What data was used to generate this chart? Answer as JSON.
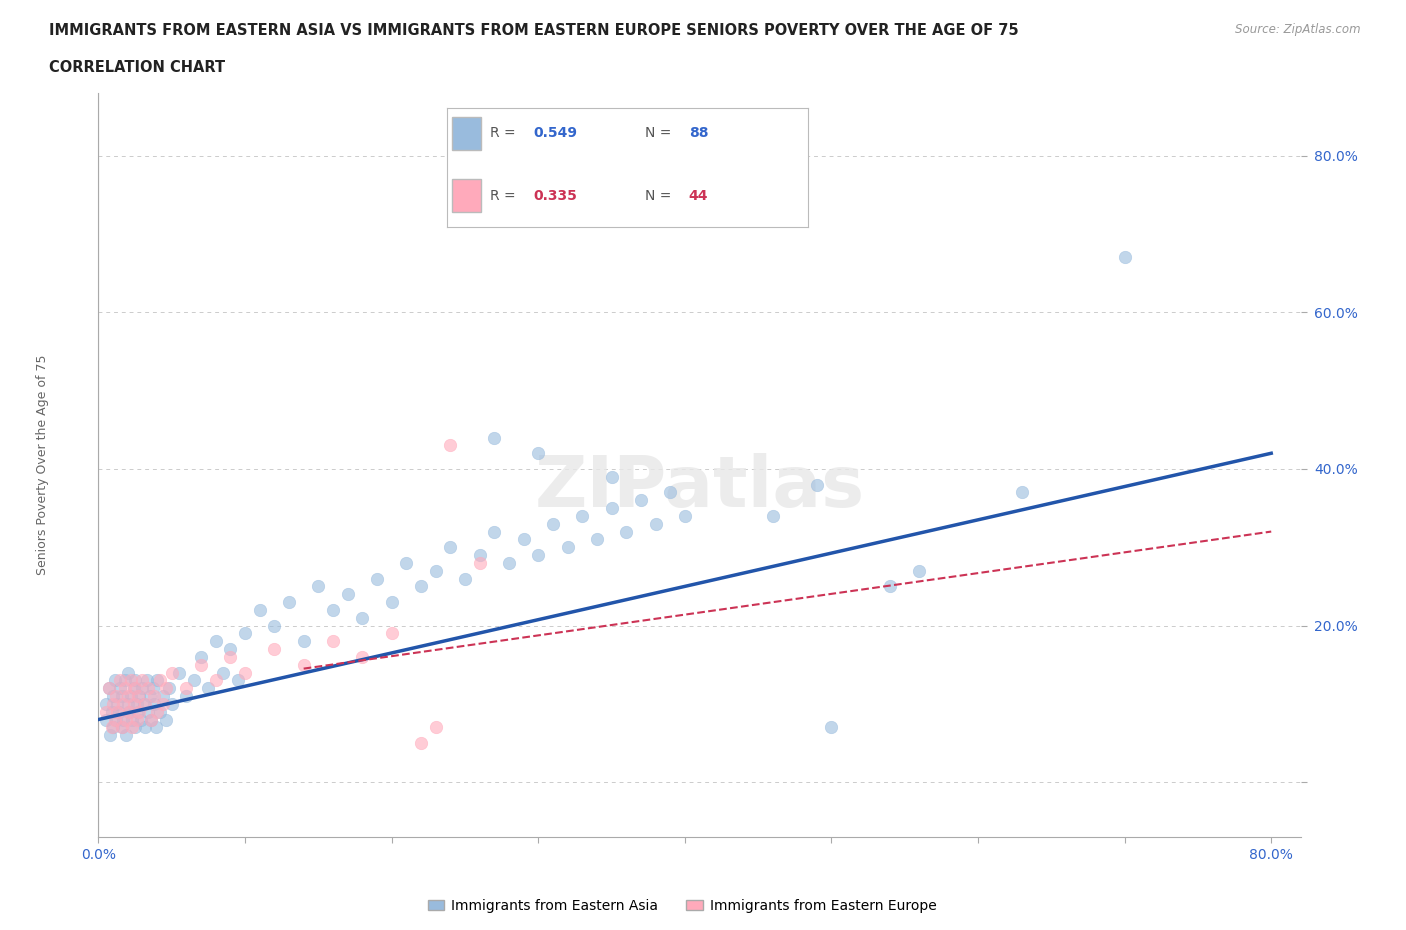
{
  "title_line1": "IMMIGRANTS FROM EASTERN ASIA VS IMMIGRANTS FROM EASTERN EUROPE SENIORS POVERTY OVER THE AGE OF 75",
  "title_line2": "CORRELATION CHART",
  "source_text": "Source: ZipAtlas.com",
  "ylabel": "Seniors Poverty Over the Age of 75",
  "xlim": [
    0.0,
    0.82
  ],
  "ylim": [
    -0.07,
    0.88
  ],
  "xticks": [
    0.0,
    0.1,
    0.2,
    0.3,
    0.4,
    0.5,
    0.6,
    0.7,
    0.8
  ],
  "ytick_positions": [
    0.0,
    0.2,
    0.4,
    0.6,
    0.8
  ],
  "yticklabels": [
    "",
    "20.0%",
    "40.0%",
    "60.0%",
    "80.0%"
  ],
  "grid_color": "#cccccc",
  "background_color": "#ffffff",
  "blue_color": "#99bbdd",
  "pink_color": "#ffaabb",
  "blue_line_color": "#2255aa",
  "pink_line_color": "#cc3355",
  "blue_scatter": [
    [
      0.005,
      0.1
    ],
    [
      0.005,
      0.08
    ],
    [
      0.007,
      0.12
    ],
    [
      0.008,
      0.06
    ],
    [
      0.009,
      0.09
    ],
    [
      0.01,
      0.11
    ],
    [
      0.01,
      0.07
    ],
    [
      0.011,
      0.13
    ],
    [
      0.012,
      0.08
    ],
    [
      0.013,
      0.1
    ],
    [
      0.014,
      0.09
    ],
    [
      0.015,
      0.12
    ],
    [
      0.016,
      0.07
    ],
    [
      0.016,
      0.11
    ],
    [
      0.017,
      0.08
    ],
    [
      0.018,
      0.13
    ],
    [
      0.019,
      0.06
    ],
    [
      0.02,
      0.1
    ],
    [
      0.02,
      0.14
    ],
    [
      0.021,
      0.09
    ],
    [
      0.022,
      0.11
    ],
    [
      0.023,
      0.08
    ],
    [
      0.024,
      0.12
    ],
    [
      0.025,
      0.07
    ],
    [
      0.025,
      0.13
    ],
    [
      0.026,
      0.1
    ],
    [
      0.027,
      0.09
    ],
    [
      0.028,
      0.11
    ],
    [
      0.029,
      0.08
    ],
    [
      0.03,
      0.12
    ],
    [
      0.031,
      0.1
    ],
    [
      0.032,
      0.07
    ],
    [
      0.033,
      0.13
    ],
    [
      0.034,
      0.09
    ],
    [
      0.035,
      0.11
    ],
    [
      0.036,
      0.08
    ],
    [
      0.037,
      0.12
    ],
    [
      0.038,
      0.1
    ],
    [
      0.039,
      0.07
    ],
    [
      0.04,
      0.13
    ],
    [
      0.042,
      0.09
    ],
    [
      0.044,
      0.11
    ],
    [
      0.046,
      0.08
    ],
    [
      0.048,
      0.12
    ],
    [
      0.05,
      0.1
    ],
    [
      0.055,
      0.14
    ],
    [
      0.06,
      0.11
    ],
    [
      0.065,
      0.13
    ],
    [
      0.07,
      0.16
    ],
    [
      0.075,
      0.12
    ],
    [
      0.08,
      0.18
    ],
    [
      0.085,
      0.14
    ],
    [
      0.09,
      0.17
    ],
    [
      0.095,
      0.13
    ],
    [
      0.1,
      0.19
    ],
    [
      0.11,
      0.22
    ],
    [
      0.12,
      0.2
    ],
    [
      0.13,
      0.23
    ],
    [
      0.14,
      0.18
    ],
    [
      0.15,
      0.25
    ],
    [
      0.16,
      0.22
    ],
    [
      0.17,
      0.24
    ],
    [
      0.18,
      0.21
    ],
    [
      0.19,
      0.26
    ],
    [
      0.2,
      0.23
    ],
    [
      0.21,
      0.28
    ],
    [
      0.22,
      0.25
    ],
    [
      0.23,
      0.27
    ],
    [
      0.24,
      0.3
    ],
    [
      0.25,
      0.26
    ],
    [
      0.26,
      0.29
    ],
    [
      0.27,
      0.32
    ],
    [
      0.28,
      0.28
    ],
    [
      0.29,
      0.31
    ],
    [
      0.3,
      0.29
    ],
    [
      0.31,
      0.33
    ],
    [
      0.32,
      0.3
    ],
    [
      0.33,
      0.34
    ],
    [
      0.34,
      0.31
    ],
    [
      0.35,
      0.35
    ],
    [
      0.36,
      0.32
    ],
    [
      0.37,
      0.36
    ],
    [
      0.38,
      0.33
    ],
    [
      0.39,
      0.37
    ],
    [
      0.4,
      0.34
    ],
    [
      0.27,
      0.44
    ],
    [
      0.3,
      0.42
    ],
    [
      0.35,
      0.39
    ],
    [
      0.46,
      0.34
    ],
    [
      0.49,
      0.38
    ],
    [
      0.54,
      0.25
    ],
    [
      0.56,
      0.27
    ],
    [
      0.63,
      0.37
    ],
    [
      0.7,
      0.67
    ],
    [
      0.5,
      0.07
    ]
  ],
  "pink_scatter": [
    [
      0.005,
      0.09
    ],
    [
      0.007,
      0.12
    ],
    [
      0.009,
      0.07
    ],
    [
      0.01,
      0.1
    ],
    [
      0.011,
      0.08
    ],
    [
      0.012,
      0.11
    ],
    [
      0.013,
      0.09
    ],
    [
      0.015,
      0.13
    ],
    [
      0.016,
      0.07
    ],
    [
      0.017,
      0.1
    ],
    [
      0.018,
      0.12
    ],
    [
      0.019,
      0.08
    ],
    [
      0.02,
      0.11
    ],
    [
      0.021,
      0.09
    ],
    [
      0.022,
      0.13
    ],
    [
      0.023,
      0.07
    ],
    [
      0.024,
      0.1
    ],
    [
      0.025,
      0.12
    ],
    [
      0.026,
      0.08
    ],
    [
      0.027,
      0.11
    ],
    [
      0.028,
      0.09
    ],
    [
      0.03,
      0.13
    ],
    [
      0.032,
      0.1
    ],
    [
      0.034,
      0.12
    ],
    [
      0.036,
      0.08
    ],
    [
      0.038,
      0.11
    ],
    [
      0.04,
      0.09
    ],
    [
      0.042,
      0.13
    ],
    [
      0.044,
      0.1
    ],
    [
      0.046,
      0.12
    ],
    [
      0.05,
      0.14
    ],
    [
      0.06,
      0.12
    ],
    [
      0.07,
      0.15
    ],
    [
      0.08,
      0.13
    ],
    [
      0.09,
      0.16
    ],
    [
      0.1,
      0.14
    ],
    [
      0.12,
      0.17
    ],
    [
      0.14,
      0.15
    ],
    [
      0.16,
      0.18
    ],
    [
      0.18,
      0.16
    ],
    [
      0.2,
      0.19
    ],
    [
      0.24,
      0.43
    ],
    [
      0.23,
      0.07
    ],
    [
      0.22,
      0.05
    ],
    [
      0.26,
      0.28
    ]
  ]
}
